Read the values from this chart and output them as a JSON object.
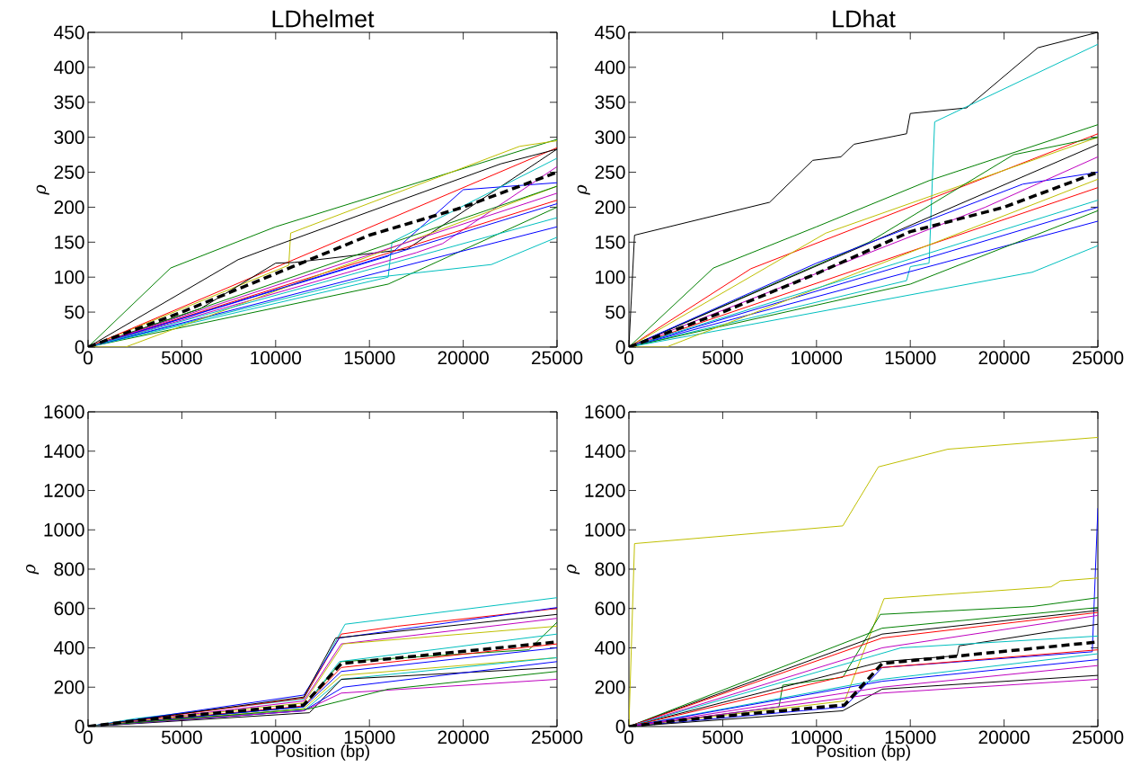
{
  "chart_data": [
    {
      "type": "line",
      "title": "LDhelmet",
      "ylabel": "ρ",
      "xlim": [
        0,
        25000
      ],
      "ylim": [
        0,
        450
      ],
      "xticks": [
        0,
        5000,
        10000,
        15000,
        20000,
        25000
      ],
      "yticks": [
        0,
        50,
        100,
        150,
        200,
        250,
        300,
        350,
        400,
        450
      ],
      "series": [
        {
          "color": "#008000",
          "x": [
            0,
            4400,
            10000,
            25000
          ],
          "values": [
            0,
            113,
            172,
            297
          ]
        },
        {
          "color": "#bfbf00",
          "x": [
            0,
            10700,
            10800,
            23000,
            25000
          ],
          "values": [
            0,
            117,
            163,
            287,
            295
          ]
        },
        {
          "color": "#ff0000",
          "x": [
            0,
            25000
          ],
          "values": [
            0,
            285
          ]
        },
        {
          "color": "#000000",
          "x": [
            0,
            8000,
            10000,
            22000,
            25000
          ],
          "values": [
            0,
            125,
            145,
            262,
            283
          ]
        },
        {
          "color": "#000000",
          "x": [
            0,
            6000,
            10000,
            11000,
            17000,
            25000
          ],
          "values": [
            0,
            55,
            120,
            121,
            140,
            283
          ]
        },
        {
          "color": "#0000ff",
          "x": [
            0,
            16000,
            20000,
            25000
          ],
          "values": [
            0,
            130,
            225,
            235
          ]
        },
        {
          "color": "#bf00bf",
          "x": [
            0,
            17500,
            18900,
            25000
          ],
          "values": [
            0,
            135,
            148,
            258
          ]
        },
        {
          "color": "#008000",
          "x": [
            0,
            16000,
            25000
          ],
          "values": [
            0,
            90,
            200
          ]
        },
        {
          "color": "#00bfbf",
          "x": [
            0,
            14800,
            21500,
            25000
          ],
          "values": [
            0,
            98,
            118,
            157
          ]
        },
        {
          "color": "#00bfbf",
          "x": [
            0,
            16000,
            16200,
            25000
          ],
          "values": [
            0,
            100,
            150,
            270
          ]
        },
        {
          "color": "#0000ff",
          "x": [
            0,
            25000
          ],
          "values": [
            0,
            172
          ]
        },
        {
          "color": "#ff0000",
          "x": [
            0,
            25000
          ],
          "values": [
            0,
            210
          ]
        },
        {
          "color": "#bfbf00",
          "x": [
            0,
            2000,
            25000
          ],
          "values": [
            0,
            0,
            230
          ]
        },
        {
          "color": "#0000ff",
          "x": [
            0,
            25000
          ],
          "values": [
            0,
            205
          ]
        },
        {
          "color": "#008000",
          "x": [
            0,
            25000
          ],
          "values": [
            0,
            230
          ]
        },
        {
          "color": "#bf00bf",
          "x": [
            0,
            25000
          ],
          "values": [
            0,
            220
          ]
        },
        {
          "color": "#00bfbf",
          "x": [
            0,
            25000
          ],
          "values": [
            0,
            185
          ]
        },
        {
          "color": "#000000",
          "line_style": "dashed",
          "x": [
            0,
            5000,
            10000,
            15000,
            20000,
            25000
          ],
          "values": [
            0,
            50,
            105,
            160,
            200,
            250
          ]
        }
      ]
    },
    {
      "type": "line",
      "title": "LDhat",
      "ylabel": "ρ",
      "xlim": [
        0,
        25000
      ],
      "ylim": [
        0,
        450
      ],
      "xticks": [
        0,
        5000,
        10000,
        15000,
        20000,
        25000
      ],
      "yticks": [
        0,
        50,
        100,
        150,
        200,
        250,
        300,
        350,
        400,
        450
      ],
      "series": [
        {
          "color": "#000000",
          "x": [
            0,
            300,
            7500,
            9800,
            11300,
            12000,
            14800,
            15000,
            18000,
            21800,
            25000
          ],
          "values": [
            0,
            160,
            207,
            267,
            272,
            290,
            305,
            334,
            342,
            428,
            450
          ]
        },
        {
          "color": "#00bfbf",
          "x": [
            0,
            14800,
            15000,
            16000,
            16300,
            25000
          ],
          "values": [
            0,
            95,
            115,
            120,
            322,
            433
          ]
        },
        {
          "color": "#008000",
          "x": [
            0,
            4500,
            10000,
            16000,
            25000
          ],
          "values": [
            0,
            113,
            172,
            238,
            318
          ]
        },
        {
          "color": "#ff0000",
          "x": [
            0,
            6500,
            25000
          ],
          "values": [
            0,
            112,
            305
          ]
        },
        {
          "color": "#bfbf00",
          "x": [
            0,
            10500,
            25000
          ],
          "values": [
            0,
            163,
            300
          ]
        },
        {
          "color": "#008000",
          "x": [
            0,
            12800,
            20500,
            25000
          ],
          "values": [
            0,
            150,
            275,
            300
          ]
        },
        {
          "color": "#000000",
          "x": [
            0,
            25000
          ],
          "values": [
            0,
            290
          ]
        },
        {
          "color": "#0000ff",
          "x": [
            0,
            10000,
            21000,
            25000
          ],
          "values": [
            0,
            120,
            233,
            250
          ]
        },
        {
          "color": "#bf00bf",
          "x": [
            0,
            19000,
            25000
          ],
          "values": [
            0,
            200,
            272
          ]
        },
        {
          "color": "#ff0000",
          "x": [
            0,
            25000
          ],
          "values": [
            0,
            228
          ]
        },
        {
          "color": "#0000ff",
          "x": [
            0,
            25000
          ],
          "values": [
            0,
            200
          ]
        },
        {
          "color": "#0000ff",
          "x": [
            0,
            25000
          ],
          "values": [
            0,
            180
          ]
        },
        {
          "color": "#008000",
          "x": [
            0,
            15000,
            25000
          ],
          "values": [
            0,
            90,
            195
          ]
        },
        {
          "color": "#00bfbf",
          "x": [
            0,
            21500,
            25000
          ],
          "values": [
            0,
            107,
            145
          ]
        },
        {
          "color": "#bfbf00",
          "x": [
            0,
            2000,
            25000
          ],
          "values": [
            0,
            0,
            240
          ]
        },
        {
          "color": "#00bfbf",
          "x": [
            0,
            25000
          ],
          "values": [
            0,
            210
          ]
        },
        {
          "color": "#000000",
          "line_style": "dashed",
          "x": [
            0,
            5000,
            10000,
            15000,
            20000,
            25000
          ],
          "values": [
            0,
            50,
            105,
            165,
            200,
            250
          ]
        }
      ]
    },
    {
      "type": "line",
      "xlabel": "Position (bp)",
      "ylabel": "ρ",
      "xlim": [
        0,
        25000
      ],
      "ylim": [
        0,
        1600
      ],
      "xticks": [
        0,
        5000,
        10000,
        15000,
        20000,
        25000
      ],
      "yticks": [
        0,
        200,
        400,
        600,
        800,
        1000,
        1200,
        1400,
        1600
      ],
      "series": [
        {
          "color": "#00bfbf",
          "x": [
            0,
            2500,
            11500,
            13700,
            25000
          ],
          "values": [
            0,
            40,
            140,
            520,
            655
          ]
        },
        {
          "color": "#ff0000",
          "x": [
            0,
            11500,
            13500,
            16500,
            25000
          ],
          "values": [
            0,
            145,
            470,
            510,
            600
          ]
        },
        {
          "color": "#0000ff",
          "x": [
            0,
            11500,
            13400,
            25000
          ],
          "values": [
            0,
            160,
            450,
            605
          ]
        },
        {
          "color": "#000000",
          "x": [
            0,
            11500,
            13200,
            25000
          ],
          "values": [
            0,
            150,
            450,
            570
          ]
        },
        {
          "color": "#bf00bf",
          "x": [
            0,
            11500,
            13500,
            25000
          ],
          "values": [
            0,
            130,
            420,
            550
          ]
        },
        {
          "color": "#bfbf00",
          "x": [
            0,
            11500,
            13600,
            25000
          ],
          "values": [
            0,
            120,
            420,
            510
          ]
        },
        {
          "color": "#008000",
          "x": [
            0,
            11500,
            13500,
            23500,
            25000
          ],
          "values": [
            0,
            100,
            330,
            390,
            530
          ]
        },
        {
          "color": "#00bfbf",
          "x": [
            0,
            11500,
            13400,
            25000
          ],
          "values": [
            0,
            100,
            330,
            470
          ]
        },
        {
          "color": "#ff0000",
          "x": [
            0,
            11500,
            13500,
            25000
          ],
          "values": [
            0,
            105,
            300,
            420
          ]
        },
        {
          "color": "#0000ff",
          "x": [
            0,
            11500,
            13500,
            25000
          ],
          "values": [
            0,
            100,
            280,
            400
          ]
        },
        {
          "color": "#bfbf00",
          "x": [
            0,
            11500,
            13500,
            25000
          ],
          "values": [
            0,
            90,
            260,
            350
          ]
        },
        {
          "color": "#00bfbf",
          "x": [
            0,
            11500,
            13500,
            25000
          ],
          "values": [
            0,
            80,
            240,
            350
          ]
        },
        {
          "color": "#000000",
          "x": [
            0,
            11800,
            13500,
            25000
          ],
          "values": [
            0,
            70,
            240,
            300
          ]
        },
        {
          "color": "#0000ff",
          "x": [
            0,
            11500,
            13600,
            25000
          ],
          "values": [
            0,
            80,
            200,
            330
          ]
        },
        {
          "color": "#bf00bf",
          "x": [
            0,
            11500,
            13500,
            25000
          ],
          "values": [
            0,
            80,
            170,
            240
          ]
        },
        {
          "color": "#008000",
          "x": [
            0,
            11800,
            16000,
            25000
          ],
          "values": [
            0,
            90,
            190,
            280
          ]
        },
        {
          "color": "#000000",
          "line_style": "dashed",
          "x": [
            0,
            2500,
            11500,
            13500,
            25000
          ],
          "values": [
            0,
            30,
            110,
            320,
            430
          ]
        }
      ]
    },
    {
      "type": "line",
      "xlabel": "Position (bp)",
      "ylabel": "ρ",
      "xlim": [
        0,
        25000
      ],
      "ylim": [
        0,
        1600
      ],
      "xticks": [
        0,
        5000,
        10000,
        15000,
        20000,
        25000
      ],
      "yticks": [
        0,
        200,
        400,
        600,
        800,
        1000,
        1200,
        1400,
        1600
      ],
      "series": [
        {
          "color": "#bfbf00",
          "x": [
            0,
            300,
            11400,
            13300,
            17000,
            21000,
            25000
          ],
          "values": [
            0,
            930,
            1020,
            1320,
            1410,
            1440,
            1470
          ]
        },
        {
          "color": "#0000ff",
          "x": [
            0,
            11500,
            13500,
            24700,
            25000
          ],
          "values": [
            0,
            100,
            300,
            380,
            1110
          ]
        },
        {
          "color": "#bfbf00",
          "x": [
            0,
            11500,
            13600,
            22500,
            23000,
            25000
          ],
          "values": [
            0,
            130,
            650,
            710,
            740,
            755
          ]
        },
        {
          "color": "#008000",
          "x": [
            0,
            8000,
            8200,
            11400,
            13400,
            21500,
            25000
          ],
          "values": [
            0,
            100,
            210,
            250,
            570,
            610,
            655
          ]
        },
        {
          "color": "#008000",
          "x": [
            0,
            13500,
            25000
          ],
          "values": [
            0,
            500,
            605
          ]
        },
        {
          "color": "#000000",
          "x": [
            0,
            13500,
            25000
          ],
          "values": [
            0,
            470,
            590
          ]
        },
        {
          "color": "#ff0000",
          "x": [
            0,
            13500,
            25000
          ],
          "values": [
            0,
            450,
            580
          ]
        },
        {
          "color": "#bf00bf",
          "x": [
            0,
            13500,
            25000
          ],
          "values": [
            0,
            400,
            565
          ]
        },
        {
          "color": "#000000",
          "x": [
            0,
            13500,
            17500,
            17600,
            25000
          ],
          "values": [
            0,
            330,
            360,
            410,
            520
          ]
        },
        {
          "color": "#00bfbf",
          "x": [
            0,
            14500,
            25000
          ],
          "values": [
            0,
            400,
            460
          ]
        },
        {
          "color": "#ff0000",
          "x": [
            0,
            13500,
            25000
          ],
          "values": [
            0,
            300,
            390
          ]
        },
        {
          "color": "#00bfbf",
          "x": [
            0,
            13500,
            25000
          ],
          "values": [
            0,
            240,
            370
          ]
        },
        {
          "color": "#0000ff",
          "x": [
            0,
            13500,
            25000
          ],
          "values": [
            0,
            230,
            340
          ]
        },
        {
          "color": "#bf00bf",
          "x": [
            0,
            13500,
            25000
          ],
          "values": [
            0,
            200,
            310
          ]
        },
        {
          "color": "#000000",
          "x": [
            0,
            11400,
            13500,
            25000
          ],
          "values": [
            0,
            80,
            190,
            260
          ]
        },
        {
          "color": "#bf00bf",
          "x": [
            0,
            13500,
            25000
          ],
          "values": [
            0,
            170,
            240
          ]
        },
        {
          "color": "#000000",
          "line_style": "dashed",
          "x": [
            0,
            2500,
            11500,
            13500,
            25000
          ],
          "values": [
            0,
            30,
            110,
            320,
            430
          ]
        }
      ]
    }
  ]
}
